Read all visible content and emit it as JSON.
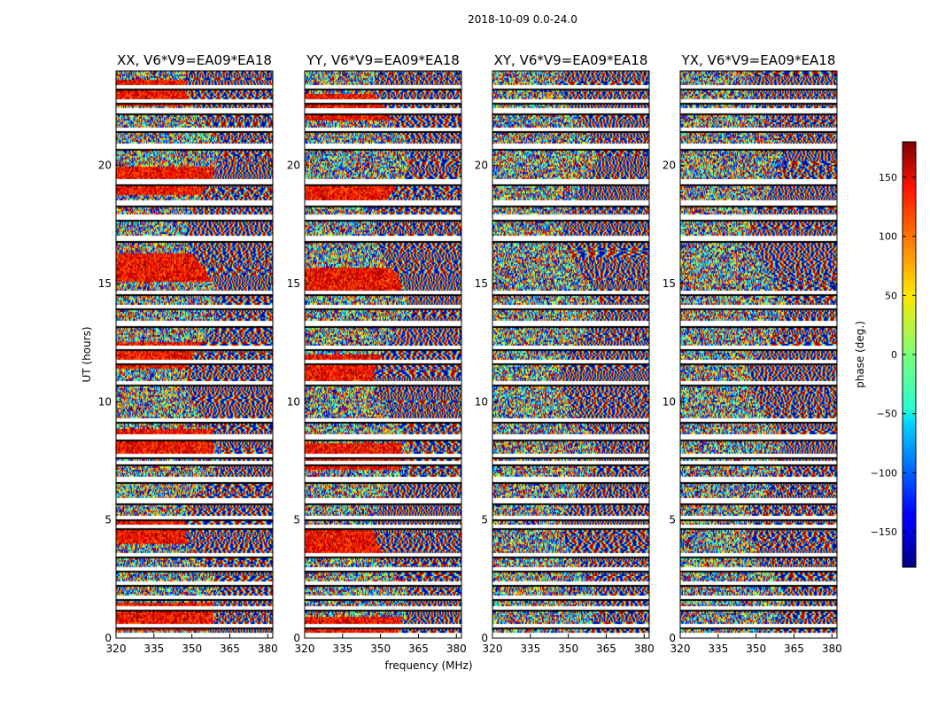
{
  "figure": {
    "title": "2018-10-09 0.0-24.0",
    "xlabel": "frequency (MHz)",
    "ylabel": "UT (hours)",
    "colorbar_label": "phase (deg.)"
  },
  "chart_data": {
    "type": "heatmap",
    "title": "2018-10-09 0.0-24.0",
    "xlabel": "frequency (MHz)",
    "ylabel": "UT (hours)",
    "xlim": [
      320,
      382
    ],
    "ylim": [
      0,
      24
    ],
    "xticks": [
      320,
      335,
      350,
      365,
      380
    ],
    "yticks": [
      0,
      5,
      10,
      15,
      20
    ],
    "panels": [
      {
        "title": "XX, V6*V9=EA09*EA18",
        "polarization": "XX"
      },
      {
        "title": "YY, V6*V9=EA09*EA18",
        "polarization": "YY"
      },
      {
        "title": "XY, V6*V9=EA09*EA18",
        "polarization": "XY"
      },
      {
        "title": "YX, V6*V9=EA09*EA18",
        "polarization": "YX"
      }
    ],
    "colorbar": {
      "label": "phase (deg.)",
      "range": [
        -180,
        180
      ],
      "ticks": [
        150,
        100,
        50,
        0,
        -50,
        -100,
        -150
      ],
      "tick_labels": [
        "150",
        "100",
        "50",
        "0",
        "−50",
        "−100",
        "−150"
      ],
      "colormap": "jet"
    },
    "data_gaps_ut_hours": [
      0.15,
      0.55,
      1.3,
      1.75,
      2.35,
      2.95,
      3.55,
      4.75,
      5.15,
      5.85,
      6.75,
      7.45,
      7.75,
      8.55,
      9.25,
      10.85,
      11.75,
      12.35,
      13.35,
      14.05,
      14.65,
      16.95,
      17.85,
      18.45,
      19.35,
      20.85,
      21.55,
      22.35,
      22.75,
      23.35
    ]
  }
}
